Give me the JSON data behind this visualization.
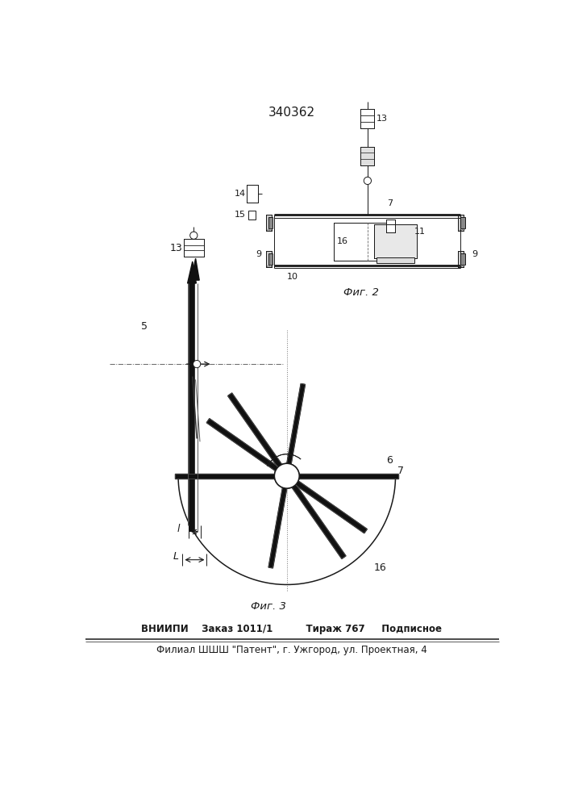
{
  "title": "340362",
  "fig2_label": "Фиг. 2",
  "fig3_label": "Фиг. 3",
  "footer_line1": "ВНИИПИ    Заказ 1011/1          Тираж 767     Подписное",
  "footer_line2": "Филиал ШШШ \"Патент\", г. Ужгород, ул. Проектная, 4",
  "bg_color": "#ffffff",
  "line_color": "#1a1a1a"
}
